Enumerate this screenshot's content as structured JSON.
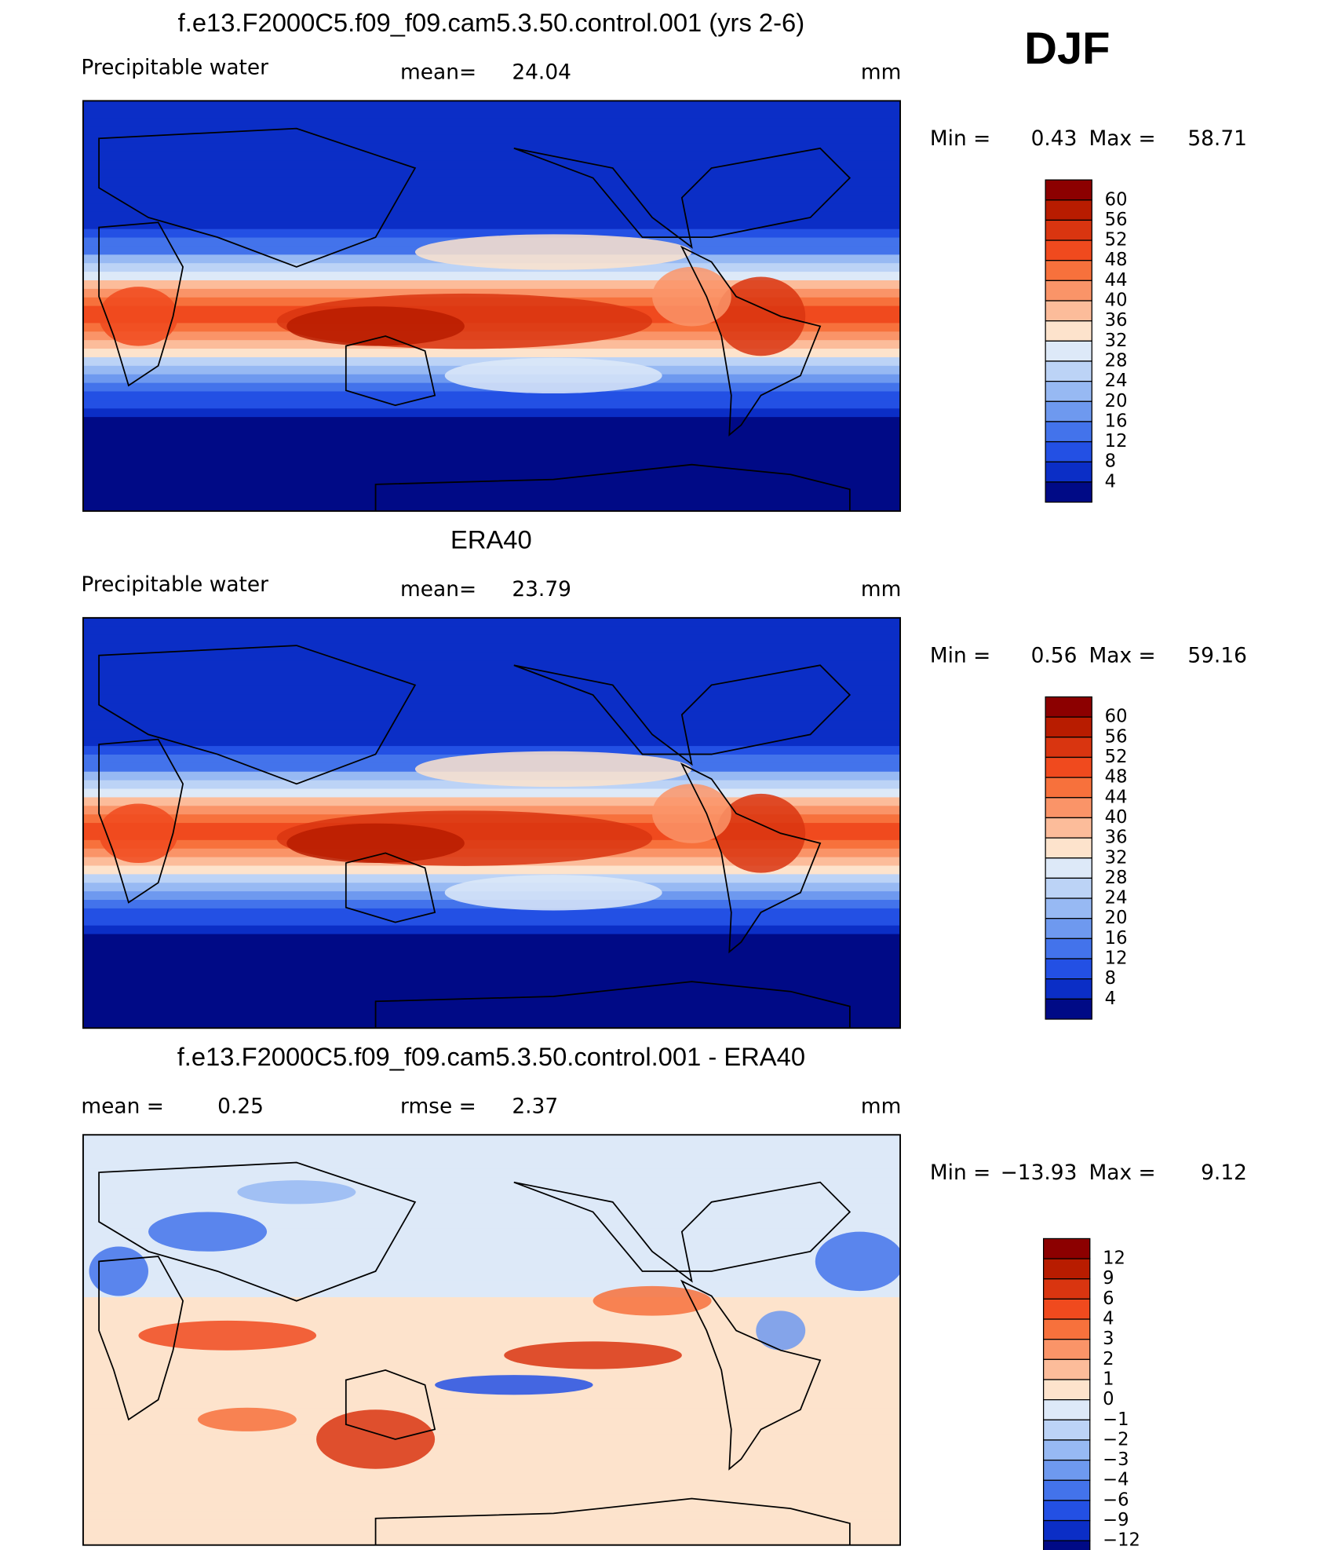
{
  "season": "DJF",
  "panels": [
    {
      "title": "f.e13.F2000C5.f09_f09.cam5.3.50.control.001 (yrs 2-6)",
      "variable": "Precipitable water",
      "stat1_label": "mean=",
      "stat1_value": "24.04",
      "units": "mm",
      "min_label": "Min  =",
      "min_value": "0.43",
      "max_label": "Max  =",
      "max_value": "58.71",
      "colorbar": {
        "labels": [
          "60",
          "56",
          "52",
          "48",
          "44",
          "40",
          "36",
          "32",
          "28",
          "24",
          "20",
          "16",
          "12",
          "8",
          "4"
        ],
        "colors": [
          "#8c0000",
          "#b81c00",
          "#d93510",
          "#f04a1e",
          "#f7713c",
          "#fa9468",
          "#fcbc9a",
          "#fde3cc",
          "#dde9f8",
          "#bcd3f6",
          "#97b9f3",
          "#6e99ef",
          "#4373eb",
          "#2350e4",
          "#0b2ec6",
          "#000a86"
        ]
      }
    },
    {
      "title": "ERA40",
      "variable": "Precipitable water",
      "stat1_label": "mean=",
      "stat1_value": "23.79",
      "units": "mm",
      "min_label": "Min  =",
      "min_value": "0.56",
      "max_label": "Max  =",
      "max_value": "59.16",
      "colorbar": {
        "labels": [
          "60",
          "56",
          "52",
          "48",
          "44",
          "40",
          "36",
          "32",
          "28",
          "24",
          "20",
          "16",
          "12",
          "8",
          "4"
        ],
        "colors": [
          "#8c0000",
          "#b81c00",
          "#d93510",
          "#f04a1e",
          "#f7713c",
          "#fa9468",
          "#fcbc9a",
          "#fde3cc",
          "#dde9f8",
          "#bcd3f6",
          "#97b9f3",
          "#6e99ef",
          "#4373eb",
          "#2350e4",
          "#0b2ec6",
          "#000a86"
        ]
      }
    },
    {
      "title": "f.e13.F2000C5.f09_f09.cam5.3.50.control.001 - ERA40",
      "stat0_label": "mean  =",
      "stat0_value": "0.25",
      "stat1_label": "rmse  =",
      "stat1_value": "2.37",
      "units": "mm",
      "min_label": "Min  =",
      "min_value": "−13.93",
      "max_label": "Max  =",
      "max_value": "9.12",
      "colorbar": {
        "labels": [
          "12",
          "9",
          "6",
          "4",
          "3",
          "2",
          "1",
          "0",
          "−1",
          "−2",
          "−3",
          "−4",
          "−6",
          "−9",
          "−12"
        ],
        "colors": [
          "#8c0000",
          "#b81c00",
          "#d93510",
          "#f04a1e",
          "#f7713c",
          "#fa9468",
          "#fcbc9a",
          "#fde3cc",
          "#dde9f8",
          "#bcd3f6",
          "#97b9f3",
          "#6e99ef",
          "#4373eb",
          "#2350e4",
          "#0b2ec6",
          "#000a86"
        ]
      }
    }
  ]
}
